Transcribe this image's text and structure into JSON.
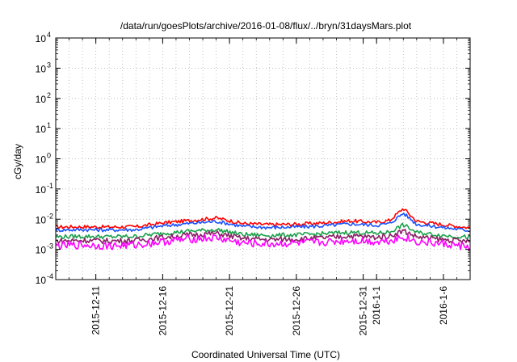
{
  "chart_data": {
    "type": "line",
    "title": "/data/run/goesPlots/archive/2016-01-08/flux/../bryn/31daysMars.plot",
    "xlabel": "Coordinated Universal Time (UTC)",
    "ylabel": "cGy/day",
    "y_scale": "log",
    "ylim": [
      0.0001,
      10000
    ],
    "xlim": [
      "2015-12-08",
      "2016-01-08"
    ],
    "y_ticks": [
      {
        "value": 0.0001,
        "mantissa": "10",
        "exp": "-4"
      },
      {
        "value": 0.001,
        "mantissa": "10",
        "exp": "-3"
      },
      {
        "value": 0.01,
        "mantissa": "10",
        "exp": "-2"
      },
      {
        "value": 0.1,
        "mantissa": "10",
        "exp": "-1"
      },
      {
        "value": 1,
        "mantissa": "10",
        "exp": "0"
      },
      {
        "value": 10,
        "mantissa": "10",
        "exp": "1"
      },
      {
        "value": 100,
        "mantissa": "10",
        "exp": "2"
      },
      {
        "value": 1000,
        "mantissa": "10",
        "exp": "3"
      },
      {
        "value": 10000,
        "mantissa": "10",
        "exp": "4"
      }
    ],
    "x_ticks": [
      {
        "date": "2015-12-11",
        "label": "2015-12-11"
      },
      {
        "date": "2015-12-16",
        "label": "2015-12-16"
      },
      {
        "date": "2015-12-21",
        "label": "2015-12-21"
      },
      {
        "date": "2015-12-26",
        "label": "2015-12-26"
      },
      {
        "date": "2015-12-31",
        "label": "2015-12-31"
      },
      {
        "date": "2016-01-01",
        "label": "2016-1-1"
      },
      {
        "date": "2016-01-06",
        "label": "2016-1-6"
      }
    ],
    "grid": true,
    "grid_style": "dotted",
    "series": [
      {
        "color": "#ff0000",
        "x": [
          "2015-12-08",
          "2015-12-10",
          "2015-12-12",
          "2015-12-14",
          "2015-12-16",
          "2015-12-18",
          "2015-12-20",
          "2015-12-22",
          "2015-12-24",
          "2015-12-26",
          "2015-12-28",
          "2015-12-30",
          "2016-01-01",
          "2016-01-02",
          "2016-01-03",
          "2016-01-04",
          "2016-01-06",
          "2016-01-08"
        ],
        "values": [
          0.0055,
          0.0056,
          0.0055,
          0.0056,
          0.0075,
          0.009,
          0.011,
          0.0072,
          0.0066,
          0.0068,
          0.0075,
          0.0088,
          0.0078,
          0.0092,
          0.023,
          0.0085,
          0.0066,
          0.0052
        ]
      },
      {
        "color": "#1a52ff",
        "x": [
          "2015-12-08",
          "2015-12-10",
          "2015-12-12",
          "2015-12-14",
          "2015-12-16",
          "2015-12-18",
          "2015-12-20",
          "2015-12-22",
          "2015-12-24",
          "2015-12-26",
          "2015-12-28",
          "2015-12-30",
          "2016-01-01",
          "2016-01-02",
          "2016-01-03",
          "2016-01-04",
          "2016-01-06",
          "2016-01-08"
        ],
        "values": [
          0.0044,
          0.0045,
          0.0044,
          0.0045,
          0.006,
          0.0072,
          0.0085,
          0.0058,
          0.0053,
          0.0055,
          0.006,
          0.007,
          0.0063,
          0.0072,
          0.016,
          0.0068,
          0.0053,
          0.0042
        ]
      },
      {
        "color": "#1aa04a",
        "x": [
          "2015-12-08",
          "2015-12-10",
          "2015-12-12",
          "2015-12-14",
          "2015-12-16",
          "2015-12-18",
          "2015-12-20",
          "2015-12-22",
          "2015-12-24",
          "2015-12-26",
          "2015-12-28",
          "2015-12-30",
          "2016-01-01",
          "2016-01-02",
          "2016-01-03",
          "2016-01-04",
          "2016-01-06",
          "2016-01-08"
        ],
        "values": [
          0.0026,
          0.0027,
          0.0026,
          0.0027,
          0.0034,
          0.004,
          0.0045,
          0.0031,
          0.0029,
          0.003,
          0.0033,
          0.0037,
          0.0034,
          0.0038,
          0.0065,
          0.0036,
          0.0029,
          0.0025
        ]
      },
      {
        "color": "#8a1f66",
        "x": [
          "2015-12-08",
          "2015-12-10",
          "2015-12-12",
          "2015-12-14",
          "2015-12-16",
          "2015-12-18",
          "2015-12-20",
          "2015-12-22",
          "2015-12-24",
          "2015-12-26",
          "2015-12-28",
          "2015-12-30",
          "2016-01-01",
          "2016-01-02",
          "2016-01-03",
          "2016-01-04",
          "2016-01-06",
          "2016-01-08"
        ],
        "values": [
          0.0019,
          0.002,
          0.0019,
          0.002,
          0.0025,
          0.003,
          0.0034,
          0.0023,
          0.0021,
          0.0022,
          0.0024,
          0.0028,
          0.0025,
          0.0028,
          0.0042,
          0.0026,
          0.0021,
          0.0018
        ]
      },
      {
        "color": "#ff00ff",
        "x": [
          "2015-12-08",
          "2015-12-10",
          "2015-12-12",
          "2015-12-14",
          "2015-12-16",
          "2015-12-18",
          "2015-12-20",
          "2015-12-22",
          "2015-12-24",
          "2015-12-26",
          "2015-12-28",
          "2015-12-30",
          "2016-01-01",
          "2016-01-02",
          "2016-01-03",
          "2016-01-04",
          "2016-01-06",
          "2016-01-08"
        ],
        "values": [
          0.0013,
          0.0014,
          0.0013,
          0.0014,
          0.0018,
          0.0022,
          0.0024,
          0.0016,
          0.0015,
          0.0016,
          0.0017,
          0.002,
          0.0018,
          0.002,
          0.0026,
          0.0018,
          0.0015,
          0.0012
        ]
      }
    ]
  }
}
